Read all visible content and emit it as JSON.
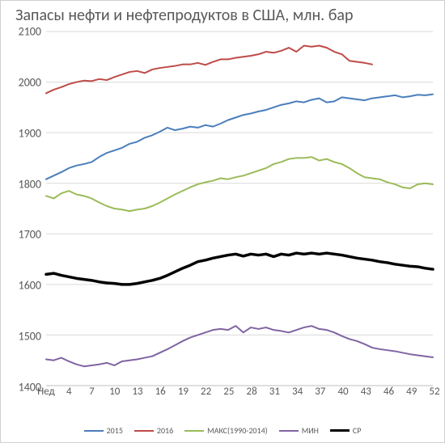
{
  "chart": {
    "type": "line",
    "title": "Запасы нефти и нефтепродуктов в США, млн. бар",
    "title_fontsize": 20,
    "title_color": "#595959",
    "background_color": "#ffffff",
    "grid_color": "#d9d9d9",
    "axis_font_color": "#595959",
    "axis_fontsize": 14,
    "ylim": [
      1400,
      2100
    ],
    "ytick_step": 100,
    "yticks": [
      1400,
      1500,
      1600,
      1700,
      1800,
      1900,
      2000,
      2100
    ],
    "x_label_first": "Нед",
    "xticks": [
      4,
      7,
      10,
      13,
      16,
      19,
      22,
      25,
      28,
      31,
      34,
      37,
      40,
      43,
      46,
      49,
      52
    ],
    "x_range": [
      1,
      52
    ],
    "series": [
      {
        "name": "2015",
        "color": "#4a7ebb",
        "width": 2,
        "values": [
          1808,
          1815,
          1822,
          1830,
          1835,
          1838,
          1842,
          1852,
          1860,
          1865,
          1870,
          1878,
          1882,
          1890,
          1895,
          1902,
          1910,
          1905,
          1908,
          1912,
          1910,
          1915,
          1912,
          1918,
          1925,
          1930,
          1935,
          1938,
          1942,
          1945,
          1950,
          1955,
          1958,
          1962,
          1960,
          1965,
          1968,
          1960,
          1962,
          1970,
          1968,
          1966,
          1964,
          1968,
          1970,
          1972,
          1974,
          1970,
          1972,
          1975,
          1974,
          1976
        ]
      },
      {
        "name": "2016",
        "color": "#be4b48",
        "width": 2,
        "values": [
          1978,
          1985,
          1990,
          1996,
          2000,
          2003,
          2002,
          2006,
          2004,
          2010,
          2015,
          2020,
          2022,
          2018,
          2025,
          2028,
          2030,
          2032,
          2035,
          2035,
          2038,
          2034,
          2040,
          2045,
          2045,
          2048,
          2050,
          2052,
          2055,
          2060,
          2058,
          2062,
          2068,
          2060,
          2072,
          2070,
          2072,
          2068,
          2060,
          2055,
          2042,
          2040,
          2038,
          2035,
          null,
          null,
          null,
          null,
          null,
          null,
          null,
          null
        ]
      },
      {
        "name": "МАКС(1990-2014)",
        "color": "#9bbb59",
        "width": 2,
        "values": [
          1775,
          1770,
          1780,
          1785,
          1778,
          1775,
          1770,
          1762,
          1755,
          1750,
          1748,
          1745,
          1748,
          1750,
          1755,
          1762,
          1770,
          1778,
          1785,
          1792,
          1798,
          1802,
          1805,
          1810,
          1808,
          1812,
          1815,
          1820,
          1825,
          1830,
          1838,
          1842,
          1848,
          1850,
          1850,
          1852,
          1845,
          1848,
          1842,
          1838,
          1830,
          1820,
          1812,
          1810,
          1808,
          1802,
          1798,
          1792,
          1790,
          1798,
          1800,
          1798
        ]
      },
      {
        "name": "МИН",
        "color": "#8064a2",
        "width": 2,
        "values": [
          1452,
          1450,
          1455,
          1448,
          1442,
          1438,
          1440,
          1442,
          1445,
          1440,
          1448,
          1450,
          1452,
          1455,
          1458,
          1465,
          1472,
          1480,
          1488,
          1495,
          1500,
          1505,
          1510,
          1512,
          1510,
          1518,
          1505,
          1515,
          1512,
          1515,
          1510,
          1508,
          1505,
          1510,
          1515,
          1518,
          1512,
          1510,
          1505,
          1498,
          1492,
          1488,
          1482,
          1475,
          1472,
          1470,
          1468,
          1465,
          1462,
          1460,
          1458,
          1456
        ]
      },
      {
        "name": "СР",
        "color": "#000000",
        "width": 3.5,
        "values": [
          1620,
          1622,
          1618,
          1615,
          1612,
          1610,
          1608,
          1605,
          1603,
          1602,
          1600,
          1600,
          1602,
          1605,
          1608,
          1612,
          1618,
          1625,
          1632,
          1638,
          1645,
          1648,
          1652,
          1655,
          1658,
          1660,
          1656,
          1660,
          1658,
          1660,
          1655,
          1660,
          1658,
          1662,
          1660,
          1662,
          1660,
          1662,
          1660,
          1658,
          1655,
          1652,
          1650,
          1648,
          1645,
          1643,
          1640,
          1638,
          1636,
          1635,
          1632,
          1630
        ]
      }
    ],
    "legend": {
      "position": "bottom",
      "fontsize": 10,
      "swatch_width": 24
    }
  }
}
